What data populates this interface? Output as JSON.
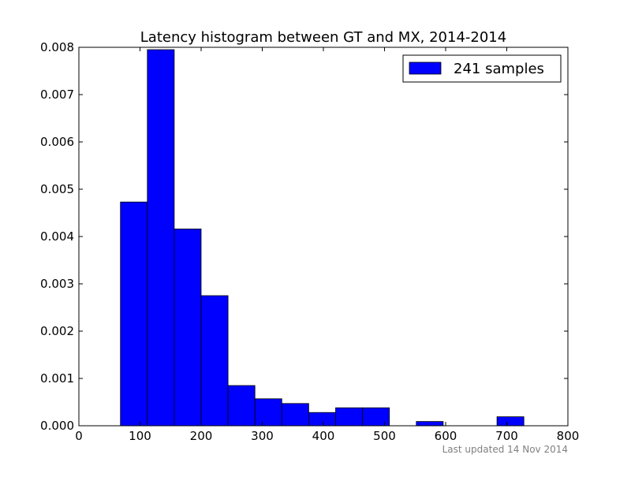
{
  "chart_data": {
    "type": "bar",
    "title": "Latency histogram between GT and MX, 2014-2014",
    "xlabel": "",
    "ylabel": "",
    "xlim": [
      0,
      800
    ],
    "ylim": [
      0,
      0.008
    ],
    "x_ticks": [
      0,
      100,
      200,
      300,
      400,
      500,
      600,
      700,
      800
    ],
    "y_ticks": [
      0.0,
      0.001,
      0.002,
      0.003,
      0.004,
      0.005,
      0.006,
      0.007,
      0.008
    ],
    "x_tick_labels": [
      "0",
      "100",
      "200",
      "300",
      "400",
      "500",
      "600",
      "700",
      "800"
    ],
    "y_tick_labels": [
      "0.000",
      "0.001",
      "0.002",
      "0.003",
      "0.004",
      "0.005",
      "0.006",
      "0.007",
      "0.008"
    ],
    "grid": false,
    "legend_position": "top-right",
    "series": [
      {
        "name": "241 samples",
        "color": "#0000ff",
        "bins": [
          {
            "x0": 68,
            "x1": 112,
            "value": 0.00473
          },
          {
            "x0": 112,
            "x1": 156,
            "value": 0.00795
          },
          {
            "x0": 156,
            "x1": 200,
            "value": 0.00416
          },
          {
            "x0": 200,
            "x1": 244,
            "value": 0.00275
          },
          {
            "x0": 244,
            "x1": 288,
            "value": 0.00085
          },
          {
            "x0": 288,
            "x1": 332,
            "value": 0.00057
          },
          {
            "x0": 332,
            "x1": 376,
            "value": 0.00047
          },
          {
            "x0": 376,
            "x1": 420,
            "value": 0.00028
          },
          {
            "x0": 420,
            "x1": 464,
            "value": 0.00038
          },
          {
            "x0": 464,
            "x1": 508,
            "value": 0.00038
          },
          {
            "x0": 552,
            "x1": 596,
            "value": 9e-05
          },
          {
            "x0": 684,
            "x1": 728,
            "value": 0.00019
          }
        ]
      }
    ]
  },
  "footer": {
    "updated": "Last updated 14 Nov 2014"
  }
}
